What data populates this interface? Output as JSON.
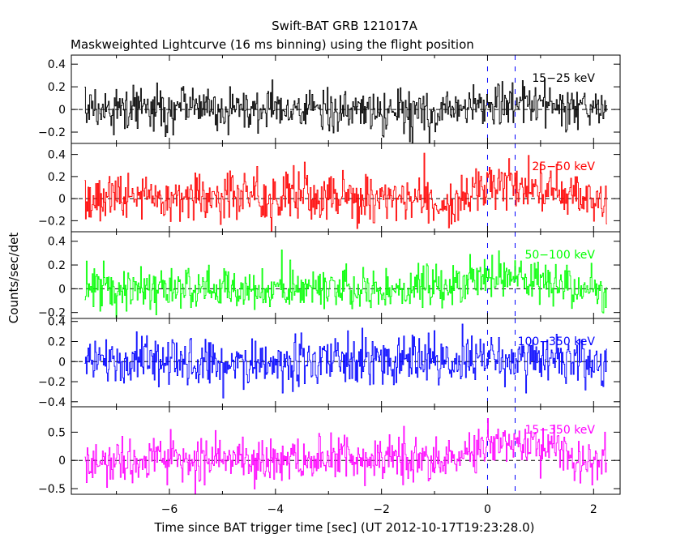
{
  "chart_data": {
    "type": "line",
    "title": "Swift-BAT GRB 121017A",
    "subtitle": "Maskweighted Lightcurve (16 ms binning) using the flight position",
    "xlabel": "Time since BAT trigger time [sec] (UT 2012-10-17T19:23:28.0)",
    "ylabel": "Counts/sec/det",
    "xlim": [
      -7.85,
      2.5
    ],
    "x_range": [
      -7.6,
      2.25
    ],
    "bin_width": 0.016,
    "x_ticks": [
      -6,
      -4,
      -2,
      0,
      2
    ],
    "x_tick_labels": [
      "−6",
      "−4",
      "−2",
      "0",
      "2"
    ],
    "markers": [
      0,
      0.52
    ],
    "grid": false,
    "series": [
      {
        "name": "15−25 keV",
        "color": "#000000",
        "ylim": [
          -0.3,
          0.48
        ],
        "y_ticks": [
          -0.2,
          0,
          0.2,
          0.4
        ],
        "y_tick_labels": [
          "−0.2",
          "0",
          "0.2",
          "0.4"
        ],
        "noise": 0.1,
        "pulse_amp": 0.06
      },
      {
        "name": "25−50 keV",
        "color": "#ff0000",
        "ylim": [
          -0.3,
          0.5
        ],
        "y_ticks": [
          -0.2,
          0,
          0.2,
          0.4
        ],
        "y_tick_labels": [
          "−0.2",
          "0",
          "0.2",
          "0.4"
        ],
        "noise": 0.11,
        "pulse_amp": 0.13
      },
      {
        "name": "50−100 keV",
        "color": "#00ff00",
        "ylim": [
          -0.25,
          0.48
        ],
        "y_ticks": [
          -0.2,
          0,
          0.2,
          0.4
        ],
        "y_tick_labels": [
          "−0.2",
          "0",
          "0.2",
          "0.4"
        ],
        "noise": 0.09,
        "pulse_amp": 0.11
      },
      {
        "name": "100−350 keV",
        "color": "#0000ff",
        "ylim": [
          -0.45,
          0.43
        ],
        "y_ticks": [
          -0.4,
          -0.2,
          0,
          0.2,
          0.4
        ],
        "y_tick_labels": [
          "−0.4",
          "−0.2",
          "0",
          "0.2",
          "0.4"
        ],
        "noise": 0.12,
        "pulse_amp": 0.04
      },
      {
        "name": "15−350 keV",
        "color": "#ff00ff",
        "ylim": [
          -0.6,
          0.95
        ],
        "y_ticks": [
          -0.5,
          0,
          0.5
        ],
        "y_tick_labels": [
          "−0.5",
          "0",
          "0.5"
        ],
        "noise": 0.2,
        "pulse_amp": 0.33
      }
    ]
  }
}
